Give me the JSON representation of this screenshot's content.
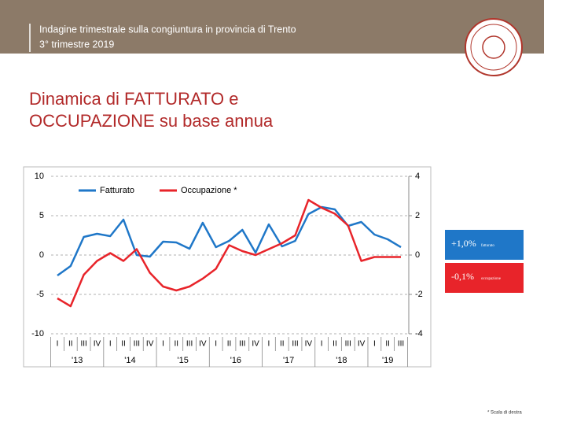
{
  "header": {
    "line1": "Indagine trimestrale sulla congiuntura in provincia di Trento",
    "line2": "3° trimestre 2019"
  },
  "slide_title": [
    "Dinamica di FATTURATO e",
    "OCCUPAZIONE su base annua"
  ],
  "footnote": "* Scala di destra",
  "chart_data": {
    "type": "line",
    "categories": [
      "I",
      "II",
      "III",
      "IV",
      "I",
      "II",
      "III",
      "IV",
      "I",
      "II",
      "III",
      "IV",
      "I",
      "II",
      "III",
      "IV",
      "I",
      "II",
      "III",
      "IV",
      "I",
      "II",
      "III",
      "IV",
      "I",
      "II",
      "III"
    ],
    "year_labels": [
      "'13",
      "'14",
      "'15",
      "'16",
      "'17",
      "'18",
      "'19"
    ],
    "series": [
      {
        "name": "Fatturato",
        "color": "#1f77c8",
        "values": [
          -2.6,
          -1.4,
          2.3,
          2.7,
          2.4,
          4.5,
          0.0,
          -0.2,
          1.7,
          1.6,
          0.8,
          4.1,
          1.0,
          1.8,
          3.2,
          0.3,
          3.9,
          1.1,
          1.8,
          5.2,
          6.1,
          5.8,
          3.7,
          4.2,
          2.6,
          2.0,
          1.0
        ]
      },
      {
        "name": "Occupazione *",
        "color": "#e8242a",
        "axis": "y2",
        "values": [
          -2.2,
          -2.6,
          -1.0,
          -0.3,
          0.1,
          -0.3,
          0.3,
          -0.9,
          -1.6,
          -1.8,
          -1.6,
          -1.2,
          -0.7,
          0.5,
          0.2,
          0.0,
          0.3,
          0.6,
          1.0,
          2.8,
          2.4,
          2.1,
          1.5,
          -0.3,
          -0.1,
          -0.1,
          -0.1
        ]
      }
    ],
    "ylim": [
      -10,
      10
    ],
    "yticks": [
      -10,
      -5,
      0,
      5,
      10
    ],
    "y2lim": [
      -4,
      4
    ],
    "y2ticks": [
      -4,
      -2,
      0,
      2,
      4
    ],
    "grid": true,
    "legend": "top-left",
    "callouts": [
      {
        "label": "+1,0%",
        "text": "fatturato",
        "color": "#1f77c8"
      },
      {
        "label": "-0,1%",
        "text": "occupazione",
        "color": "#e8242a"
      }
    ]
  }
}
